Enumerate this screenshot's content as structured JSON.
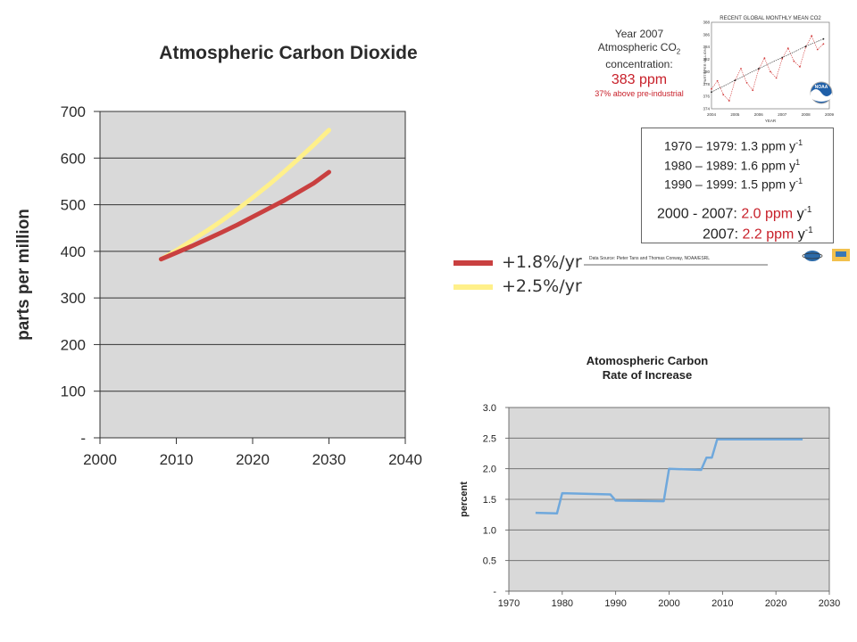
{
  "chart_data": [
    {
      "type": "line",
      "title": "Atmospheric Carbon Dioxide",
      "ylabel": "parts per million",
      "xlabel": "",
      "xlim": [
        2000,
        2040
      ],
      "ylim": [
        0,
        700
      ],
      "x_ticks": [
        "2000",
        "2010",
        "2020",
        "2030",
        "2040"
      ],
      "y_ticks": [
        "-",
        "100",
        "200",
        "300",
        "400",
        "500",
        "600",
        "700"
      ],
      "grid": true,
      "legend_position": "bottom-right",
      "series": [
        {
          "name": "+1.8%/yr",
          "color": "#c94040",
          "points": [
            [
              2008,
              383
            ],
            [
              2010,
              397
            ],
            [
              2012,
              411
            ],
            [
              2014,
              426
            ],
            [
              2016,
              441
            ],
            [
              2018,
              457
            ],
            [
              2020,
              474
            ],
            [
              2022,
              491
            ],
            [
              2024,
              508
            ],
            [
              2026,
              527
            ],
            [
              2028,
              546
            ],
            [
              2030,
              570
            ]
          ]
        },
        {
          "name": "+2.5%/yr",
          "color": "#fff08a",
          "points": [
            [
              2008,
              383
            ],
            [
              2010,
              402
            ],
            [
              2012,
              423
            ],
            [
              2014,
              444
            ],
            [
              2016,
              466
            ],
            [
              2018,
              490
            ],
            [
              2020,
              515
            ],
            [
              2022,
              541
            ],
            [
              2024,
              569
            ],
            [
              2026,
              598
            ],
            [
              2028,
              628
            ],
            [
              2030,
              660
            ]
          ]
        }
      ]
    },
    {
      "type": "line",
      "title": "Atomospheric Carbon",
      "subtitle": "Rate of Increase",
      "ylabel": "percent",
      "xlabel": "",
      "xlim": [
        1970,
        2030
      ],
      "ylim": [
        0,
        3.0
      ],
      "x_ticks": [
        "1970",
        "1980",
        "1990",
        "2000",
        "2010",
        "2020",
        "2030"
      ],
      "y_ticks": [
        "-",
        "0.5",
        "1.0",
        "1.5",
        "2.0",
        "2.5",
        "3.0"
      ],
      "grid": true,
      "series": [
        {
          "color": "#6fa8dc",
          "points": [
            [
              1975,
              1.28
            ],
            [
              1979,
              1.27
            ],
            [
              1980,
              1.6
            ],
            [
              1989,
              1.58
            ],
            [
              1990,
              1.48
            ],
            [
              1999,
              1.47
            ],
            [
              2000,
              2.0
            ],
            [
              2006,
              1.98
            ],
            [
              2007,
              2.18
            ],
            [
              2008,
              2.18
            ],
            [
              2009,
              2.48
            ],
            [
              2025,
              2.48
            ]
          ]
        }
      ]
    },
    {
      "type": "line",
      "title": "RECENT GLOBAL MONTHLY MEAN CO2",
      "ylabel": "PARTS PER MILLION",
      "xlabel": "YEAR",
      "xlim": [
        2004,
        2009
      ],
      "ylim": [
        374,
        388
      ],
      "x_ticks": [
        "2004",
        "2005",
        "2006",
        "2007",
        "2008",
        "2009"
      ],
      "y_ticks": [
        "374",
        "376",
        "378",
        "380",
        "382",
        "384",
        "386",
        "388"
      ],
      "series": [
        {
          "color": "#d23a3a",
          "points": [
            [
              2004.0,
              377.2
            ],
            [
              2004.25,
              378.5
            ],
            [
              2004.5,
              376.3
            ],
            [
              2004.75,
              375.3
            ],
            [
              2005.0,
              378.6
            ],
            [
              2005.25,
              380.5
            ],
            [
              2005.5,
              378.2
            ],
            [
              2005.75,
              377.0
            ],
            [
              2006.0,
              380.4
            ],
            [
              2006.25,
              382.2
            ],
            [
              2006.5,
              380.0
            ],
            [
              2006.75,
              379.0
            ],
            [
              2007.0,
              382.1
            ],
            [
              2007.25,
              383.8
            ],
            [
              2007.5,
              381.7
            ],
            [
              2007.75,
              380.8
            ],
            [
              2008.0,
              384.0
            ],
            [
              2008.25,
              385.8
            ],
            [
              2008.5,
              383.6
            ],
            [
              2008.75,
              384.5
            ]
          ]
        },
        {
          "color": "#222222",
          "points": [
            [
              2004.0,
              376.7
            ],
            [
              2005.0,
              378.6
            ],
            [
              2006.0,
              380.5
            ],
            [
              2007.0,
              382.3
            ],
            [
              2008.0,
              384.1
            ],
            [
              2008.75,
              385.3
            ]
          ]
        }
      ]
    }
  ],
  "info": {
    "year_line": "Year 2007",
    "co2_line_prefix": "Atmospheric CO",
    "co2_sub": "2",
    "concentration_line": "concentration:",
    "ppm_value": "383 ppm",
    "above_line": "37% above pre-industrial"
  },
  "stats": [
    {
      "label": "1970 – 1979: 1.3 ppm y",
      "sup": "-1"
    },
    {
      "label": "1980 – 1989: 1.6 ppm y",
      "sup": "1"
    },
    {
      "label": "1990 – 1999: 1.5 ppm y",
      "sup": "-1"
    }
  ],
  "stats_highlight": [
    {
      "label": "2000 - 2007:",
      "value": "2.0 ppm",
      "unit": "y",
      "sup": "-1"
    },
    {
      "label": "2007:",
      "value": "2.2 ppm",
      "unit": "y",
      "sup": "-1"
    }
  ],
  "source_text": "Data Source: Pieter Tans and Thomas Conway, NOAA/ESRL",
  "logo_text": "NOAA"
}
